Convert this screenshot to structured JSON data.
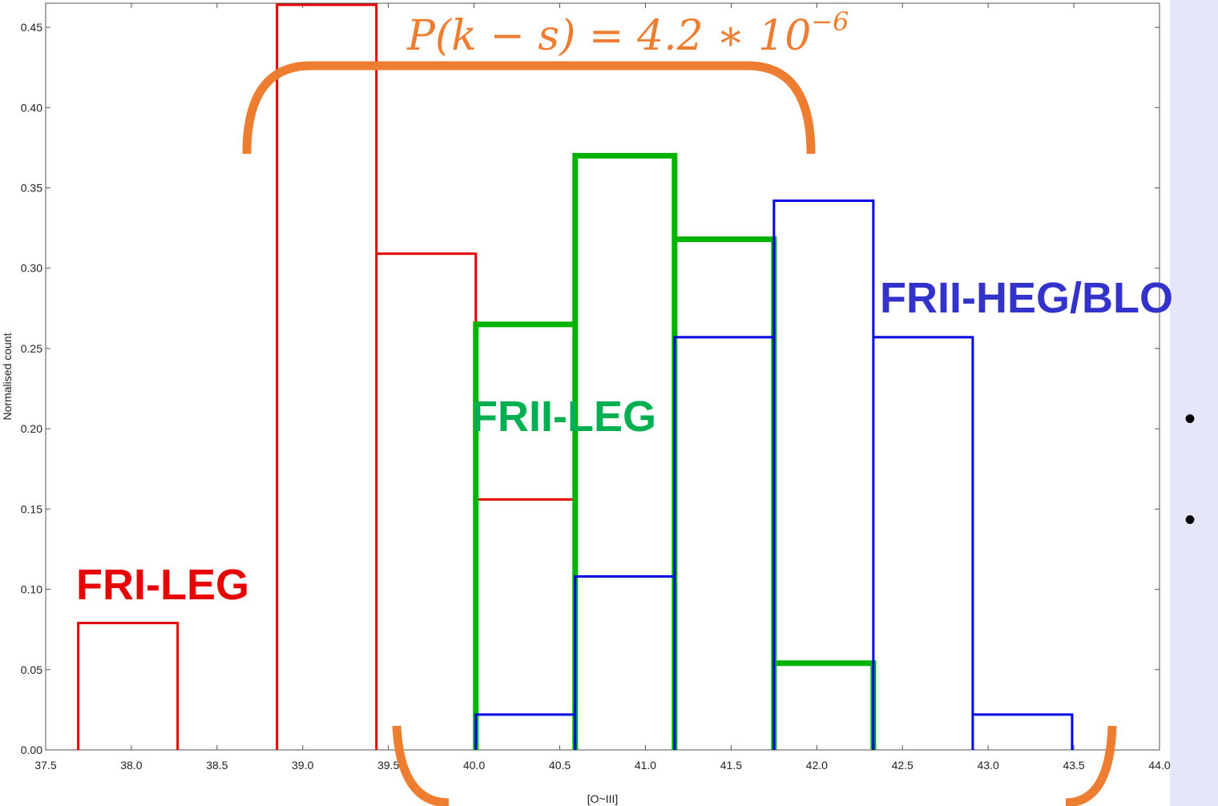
{
  "chart_data": {
    "type": "histogram",
    "xlabel": "[O~III]",
    "ylabel": "Normalised count",
    "xlim": [
      37.5,
      44.0
    ],
    "ylim": [
      0.0,
      0.465
    ],
    "x_ticks": [
      "37.5",
      "38.0",
      "38.5",
      "39.0",
      "39.5",
      "40.0",
      "40.5",
      "41.0",
      "41.5",
      "42.0",
      "42.5",
      "43.0",
      "43.5",
      "44.0"
    ],
    "y_ticks": [
      "0.00",
      "0.05",
      "0.10",
      "0.15",
      "0.20",
      "0.25",
      "0.30",
      "0.35",
      "0.40",
      "0.45"
    ],
    "series": [
      {
        "name": "FRI-LEG",
        "color": "#e60000",
        "bin_edges": [
          37.69,
          38.27,
          38.85,
          39.43,
          40.01,
          40.59
        ],
        "values": [
          0.079,
          0.0,
          0.464,
          0.309,
          0.156
        ]
      },
      {
        "name": "FRII-LEG",
        "color": "#00b300",
        "bin_edges": [
          40.01,
          40.59,
          41.17,
          41.75,
          42.33
        ],
        "values": [
          0.265,
          0.37,
          0.318,
          0.054
        ]
      },
      {
        "name": "FRII-HEG/BLO",
        "color": "#0000e6",
        "bin_edges": [
          40.01,
          40.59,
          41.17,
          41.75,
          42.33,
          42.91,
          43.49
        ],
        "values": [
          0.022,
          0.108,
          0.257,
          0.342,
          0.257,
          0.022
        ]
      }
    ],
    "annotation": {
      "text_main": "P(k − s) = 4.2 ∗ 10",
      "text_exp": "−6",
      "color": "#ed7d31"
    }
  },
  "right_panel": {
    "bullets": [
      "•",
      "•"
    ],
    "color": "#e6e6fa"
  }
}
